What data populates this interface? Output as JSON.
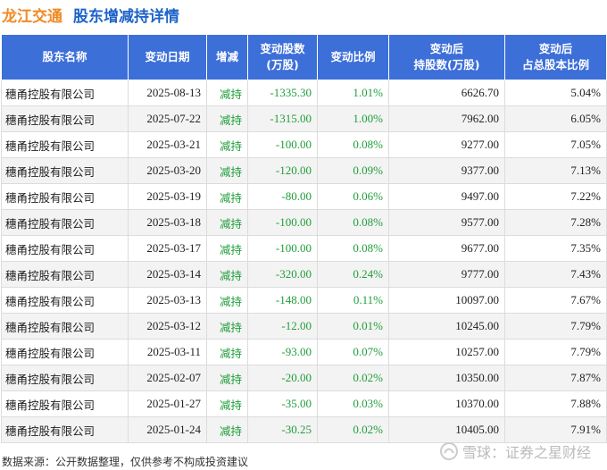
{
  "header": {
    "company": "龙江交通",
    "subtitle": "股东增减持详情"
  },
  "table": {
    "columns": [
      "股东名称",
      "变动日期",
      "增减",
      "变动股数\n(万股)",
      "变动比例",
      "变动后\n持股数(万股)",
      "变动后\n占总股本比例"
    ],
    "rows": [
      {
        "name": "穗甬控股有限公司",
        "date": "2025-08-13",
        "dir": "减持",
        "chg": "-1335.30",
        "ratio": "1.01%",
        "after": "6626.70",
        "pct": "5.04%"
      },
      {
        "name": "穗甬控股有限公司",
        "date": "2025-07-22",
        "dir": "减持",
        "chg": "-1315.00",
        "ratio": "1.00%",
        "after": "7962.00",
        "pct": "6.05%"
      },
      {
        "name": "穗甬控股有限公司",
        "date": "2025-03-21",
        "dir": "减持",
        "chg": "-100.00",
        "ratio": "0.08%",
        "after": "9277.00",
        "pct": "7.05%"
      },
      {
        "name": "穗甬控股有限公司",
        "date": "2025-03-20",
        "dir": "减持",
        "chg": "-120.00",
        "ratio": "0.09%",
        "after": "9377.00",
        "pct": "7.13%"
      },
      {
        "name": "穗甬控股有限公司",
        "date": "2025-03-19",
        "dir": "减持",
        "chg": "-80.00",
        "ratio": "0.06%",
        "after": "9497.00",
        "pct": "7.22%"
      },
      {
        "name": "穗甬控股有限公司",
        "date": "2025-03-18",
        "dir": "减持",
        "chg": "-100.00",
        "ratio": "0.08%",
        "after": "9577.00",
        "pct": "7.28%"
      },
      {
        "name": "穗甬控股有限公司",
        "date": "2025-03-17",
        "dir": "减持",
        "chg": "-100.00",
        "ratio": "0.08%",
        "after": "9677.00",
        "pct": "7.35%"
      },
      {
        "name": "穗甬控股有限公司",
        "date": "2025-03-14",
        "dir": "减持",
        "chg": "-320.00",
        "ratio": "0.24%",
        "after": "9777.00",
        "pct": "7.43%"
      },
      {
        "name": "穗甬控股有限公司",
        "date": "2025-03-13",
        "dir": "减持",
        "chg": "-148.00",
        "ratio": "0.11%",
        "after": "10097.00",
        "pct": "7.67%"
      },
      {
        "name": "穗甬控股有限公司",
        "date": "2025-03-12",
        "dir": "减持",
        "chg": "-12.00",
        "ratio": "0.01%",
        "after": "10245.00",
        "pct": "7.79%"
      },
      {
        "name": "穗甬控股有限公司",
        "date": "2025-03-11",
        "dir": "减持",
        "chg": "-93.00",
        "ratio": "0.07%",
        "after": "10257.00",
        "pct": "7.79%"
      },
      {
        "name": "穗甬控股有限公司",
        "date": "2025-02-07",
        "dir": "减持",
        "chg": "-20.00",
        "ratio": "0.02%",
        "after": "10350.00",
        "pct": "7.87%"
      },
      {
        "name": "穗甬控股有限公司",
        "date": "2025-01-27",
        "dir": "减持",
        "chg": "-35.00",
        "ratio": "0.03%",
        "after": "10370.00",
        "pct": "7.88%"
      },
      {
        "name": "穗甬控股有限公司",
        "date": "2025-01-24",
        "dir": "减持",
        "chg": "-30.25",
        "ratio": "0.02%",
        "after": "10405.00",
        "pct": "7.91%"
      }
    ]
  },
  "footer": {
    "source": "数据来源：公开数据整理，仅供参考不构成投资建议"
  },
  "brand": {
    "icon": "snowball-icon",
    "text": "雪球：证券之星财经"
  },
  "colors": {
    "header_bg": "#3d6fd9",
    "company": "#f08a24",
    "subtitle": "#1d63c9",
    "decrease": "#1f9e3a"
  }
}
